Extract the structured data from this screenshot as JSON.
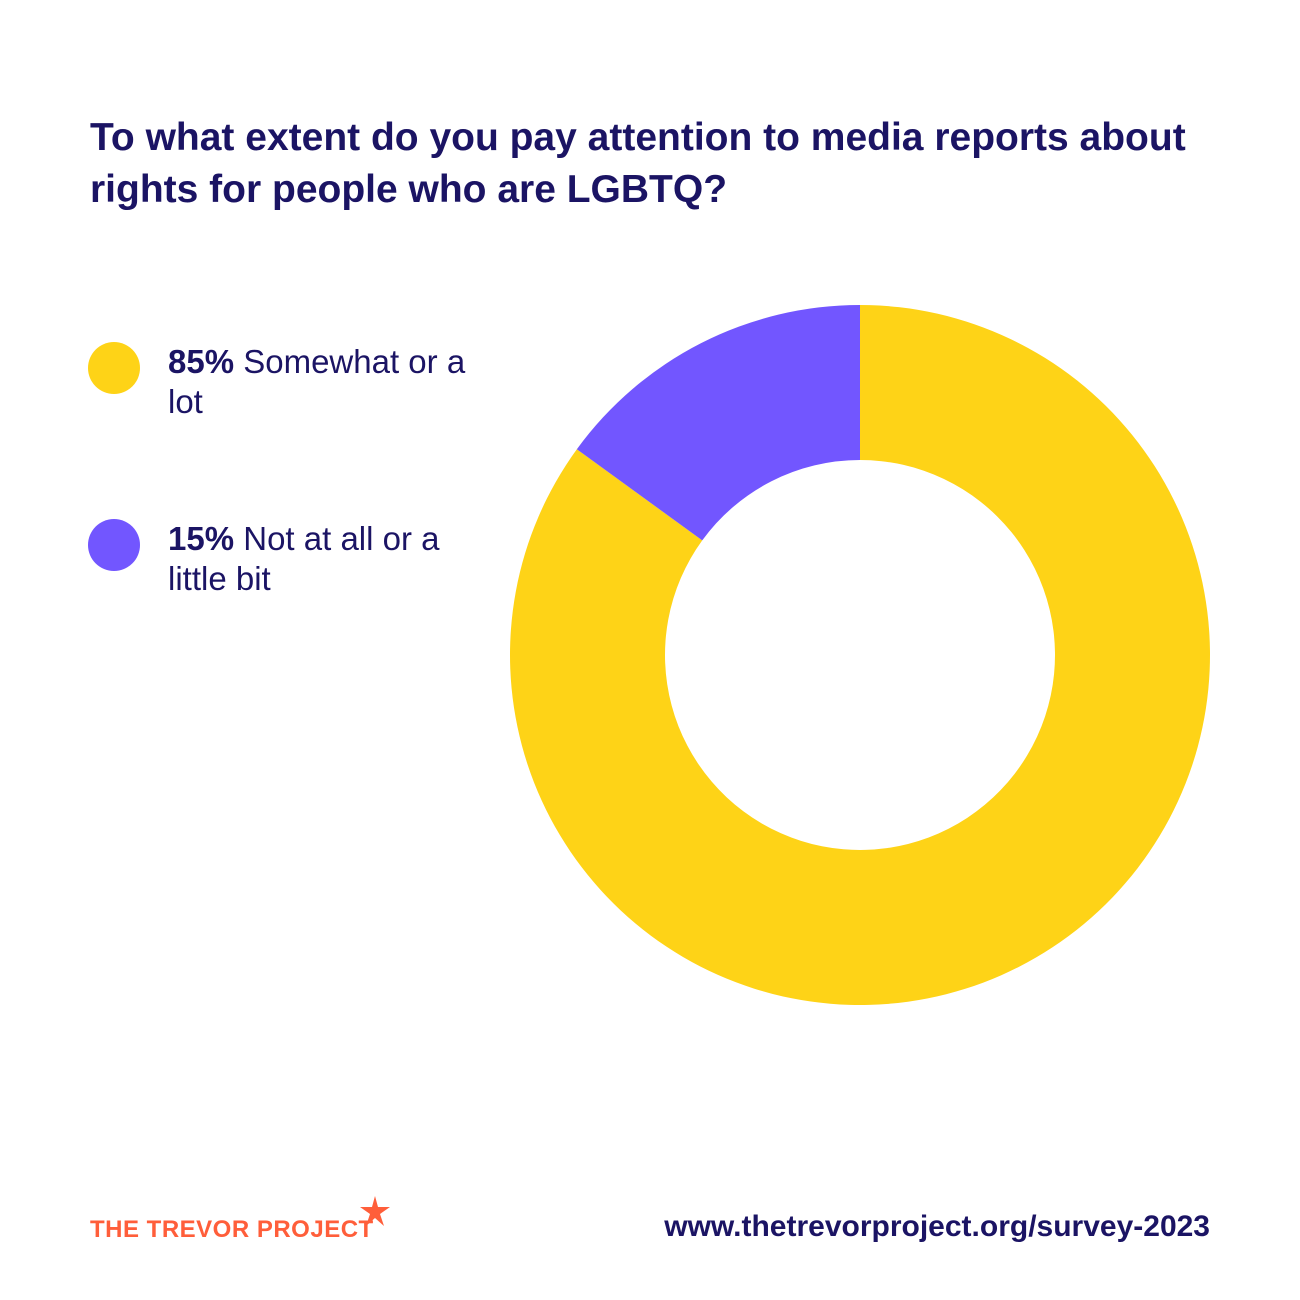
{
  "title": "To what extent do you pay attention to media reports about rights for people who are LGBTQ?",
  "legend": [
    {
      "pct": "85%",
      "label": " Somewhat or a lot",
      "color": "#FED317"
    },
    {
      "pct": "15%",
      "label": " Not at all or a little bit",
      "color": "#7256FF"
    }
  ],
  "chart_data": {
    "type": "pie",
    "donut": true,
    "title": "To what extent do you pay attention to media reports about rights for people who are LGBTQ?",
    "categories": [
      "Somewhat or a lot",
      "Not at all or a little bit"
    ],
    "values": [
      85,
      15
    ],
    "colors": [
      "#FED317",
      "#7256FF"
    ],
    "legend_position": "left"
  },
  "footer": {
    "logo_text": "THE TREVOR PROJECT",
    "logo_color": "#FF5E3A",
    "url": "www.thetrevorproject.org/survey-2023"
  }
}
